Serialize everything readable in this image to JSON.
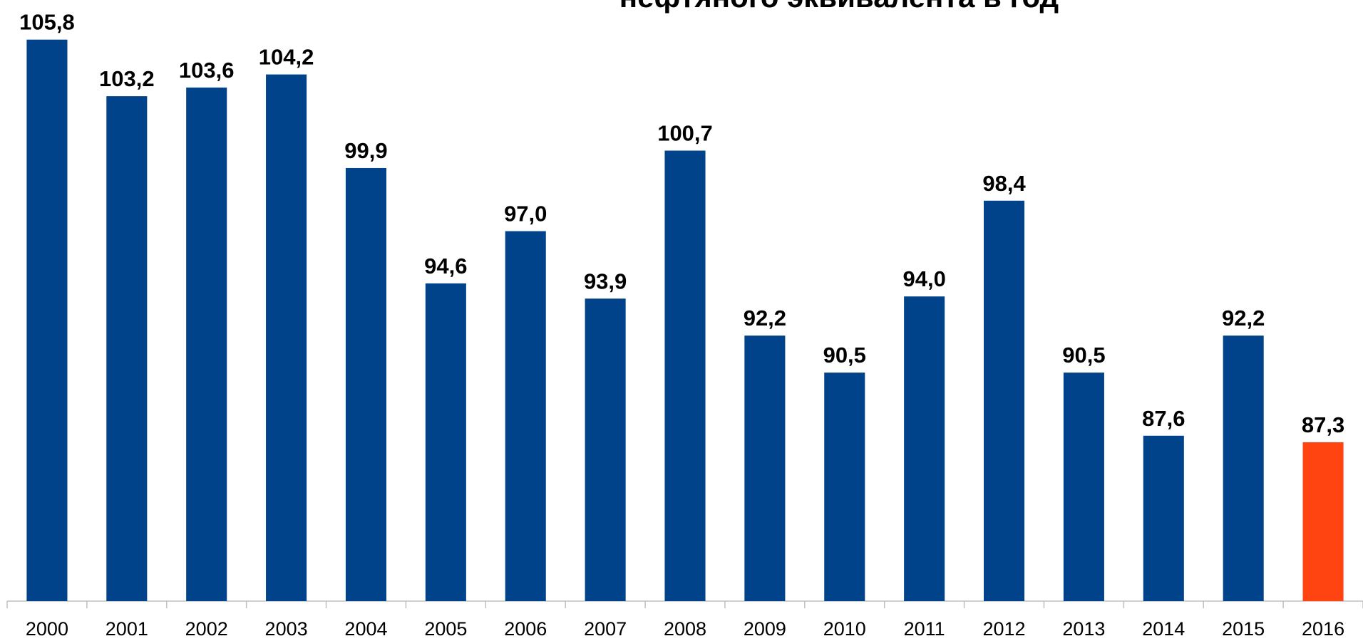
{
  "chart_data": {
    "type": "bar",
    "title": "нефтяного эквивалента в год",
    "categories": [
      "2000",
      "2001",
      "2002",
      "2003",
      "2004",
      "2005",
      "2006",
      "2007",
      "2008",
      "2009",
      "2010",
      "2011",
      "2012",
      "2013",
      "2014",
      "2015",
      "2016"
    ],
    "values": [
      105.8,
      103.2,
      103.6,
      104.2,
      99.9,
      94.6,
      97.0,
      93.9,
      100.7,
      92.2,
      90.5,
      94.0,
      98.4,
      90.5,
      87.6,
      92.2,
      87.3
    ],
    "value_labels": [
      "105,8",
      "103,2",
      "103,6",
      "104,2",
      "99,9",
      "94,6",
      "97,0",
      "93,9",
      "100,7",
      "92,2",
      "90,5",
      "94,0",
      "98,4",
      "90,5",
      "87,6",
      "92,2",
      "87,3"
    ],
    "colors": [
      "#00438a",
      "#00438a",
      "#00438a",
      "#00438a",
      "#00438a",
      "#00438a",
      "#00438a",
      "#00438a",
      "#00438a",
      "#00438a",
      "#00438a",
      "#00438a",
      "#00438a",
      "#00438a",
      "#00438a",
      "#00438a",
      "#ff4411"
    ],
    "ylim": [
      80,
      107
    ],
    "grid": false
  }
}
